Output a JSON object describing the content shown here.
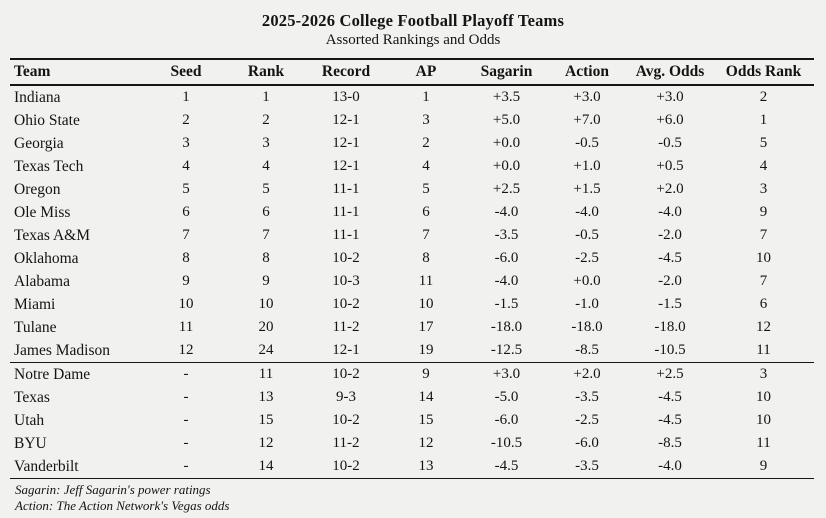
{
  "chart_data": {
    "type": "table",
    "title": "2025-2026 College Football Playoff Teams",
    "subtitle": "Assorted Rankings and Odds",
    "columns": [
      "Team",
      "Seed",
      "Rank",
      "Record",
      "AP",
      "Sagarin",
      "Action",
      "Avg. Odds",
      "Odds Rank"
    ],
    "sections": [
      {
        "name": "playoff-teams",
        "rows": [
          [
            "Indiana",
            "1",
            "1",
            "13-0",
            "1",
            "+3.5",
            "+3.0",
            "+3.0",
            "2"
          ],
          [
            "Ohio State",
            "2",
            "2",
            "12-1",
            "3",
            "+5.0",
            "+7.0",
            "+6.0",
            "1"
          ],
          [
            "Georgia",
            "3",
            "3",
            "12-1",
            "2",
            "+0.0",
            "-0.5",
            "-0.5",
            "5"
          ],
          [
            "Texas Tech",
            "4",
            "4",
            "12-1",
            "4",
            "+0.0",
            "+1.0",
            "+0.5",
            "4"
          ],
          [
            "Oregon",
            "5",
            "5",
            "11-1",
            "5",
            "+2.5",
            "+1.5",
            "+2.0",
            "3"
          ],
          [
            "Ole Miss",
            "6",
            "6",
            "11-1",
            "6",
            "-4.0",
            "-4.0",
            "-4.0",
            "9"
          ],
          [
            "Texas A&M",
            "7",
            "7",
            "11-1",
            "7",
            "-3.5",
            "-0.5",
            "-2.0",
            "7"
          ],
          [
            "Oklahoma",
            "8",
            "8",
            "10-2",
            "8",
            "-6.0",
            "-2.5",
            "-4.5",
            "10"
          ],
          [
            "Alabama",
            "9",
            "9",
            "10-3",
            "11",
            "-4.0",
            "+0.0",
            "-2.0",
            "7"
          ],
          [
            "Miami",
            "10",
            "10",
            "10-2",
            "10",
            "-1.5",
            "-1.0",
            "-1.5",
            "6"
          ],
          [
            "Tulane",
            "11",
            "20",
            "11-2",
            "17",
            "-18.0",
            "-18.0",
            "-18.0",
            "12"
          ],
          [
            "James Madison",
            "12",
            "24",
            "12-1",
            "19",
            "-12.5",
            "-8.5",
            "-10.5",
            "11"
          ]
        ]
      },
      {
        "name": "non-playoff-teams",
        "rows": [
          [
            "Notre Dame",
            "-",
            "11",
            "10-2",
            "9",
            "+3.0",
            "+2.0",
            "+2.5",
            "3"
          ],
          [
            "Texas",
            "-",
            "13",
            "9-3",
            "14",
            "-5.0",
            "-3.5",
            "-4.5",
            "10"
          ],
          [
            "Utah",
            "-",
            "15",
            "10-2",
            "15",
            "-6.0",
            "-2.5",
            "-4.5",
            "10"
          ],
          [
            "BYU",
            "-",
            "12",
            "11-2",
            "12",
            "-10.5",
            "-6.0",
            "-8.5",
            "11"
          ],
          [
            "Vanderbilt",
            "-",
            "14",
            "10-2",
            "13",
            "-4.5",
            "-3.5",
            "-4.0",
            "9"
          ]
        ]
      }
    ],
    "footnotes": [
      "Sagarin: Jeff Sagarin's power ratings",
      "Action: The Action Network's Vegas odds"
    ],
    "layout_hints": {
      "background": "#f1f1ef",
      "text_color": "#141414",
      "rule_color": "#161616"
    }
  }
}
